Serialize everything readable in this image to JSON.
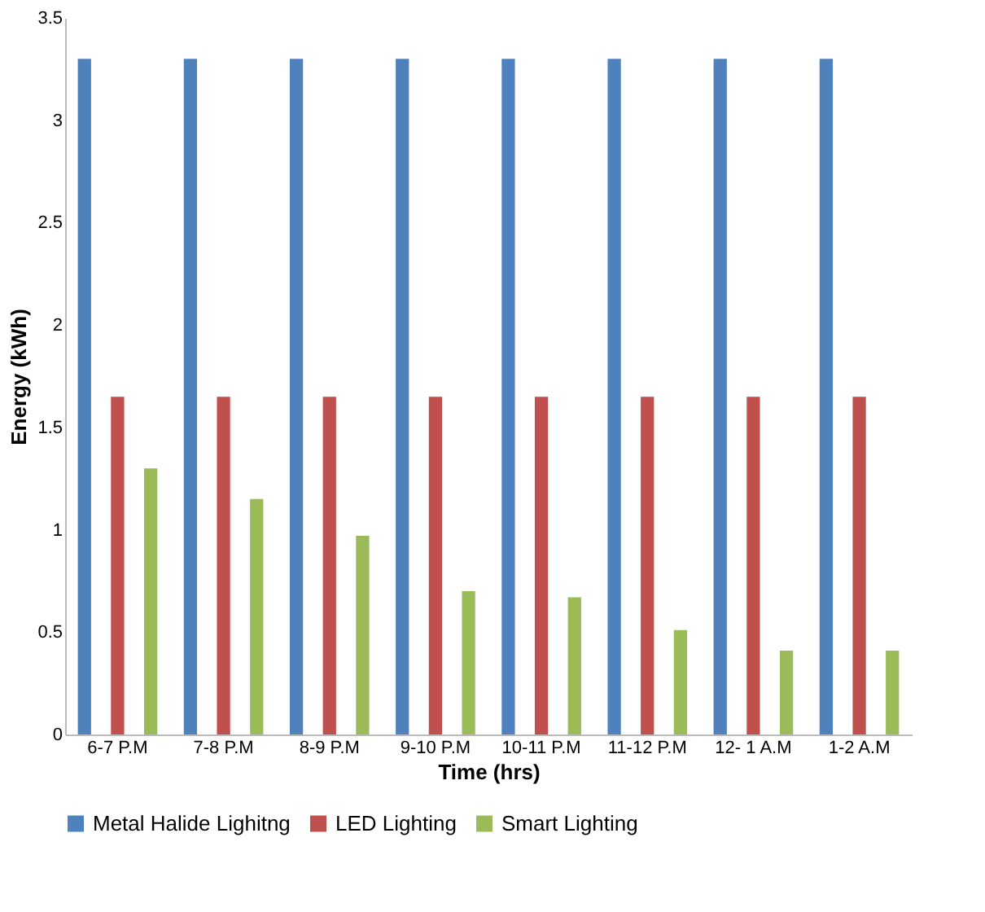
{
  "chart_data": {
    "type": "bar",
    "xlabel": "Time (hrs)",
    "ylabel": "Energy (kWh)",
    "categories": [
      "6-7 P.M",
      "7-8 P.M",
      "8-9 P.M",
      "9-10 P.M",
      "10-11 P.M",
      "11-12 P.M",
      "12- 1 A.M",
      "1-2 A.M"
    ],
    "series": [
      {
        "name": "Metal Halide Lighitng",
        "color": "#4f81bd",
        "values": [
          3.3,
          3.3,
          3.3,
          3.3,
          3.3,
          3.3,
          3.3,
          3.3
        ]
      },
      {
        "name": "LED Lighting",
        "color": "#c0504d",
        "values": [
          1.65,
          1.65,
          1.65,
          1.65,
          1.65,
          1.65,
          1.65,
          1.65
        ]
      },
      {
        "name": "Smart Lighting",
        "color": "#9bbb59",
        "values": [
          1.3,
          1.15,
          0.97,
          0.7,
          0.67,
          0.51,
          0.41,
          0.41
        ]
      }
    ],
    "ylim": [
      0,
      3.5
    ],
    "yticks": [
      0,
      0.5,
      1,
      1.5,
      2,
      2.5,
      3,
      3.5
    ],
    "grid": false,
    "legend": "bottom"
  }
}
